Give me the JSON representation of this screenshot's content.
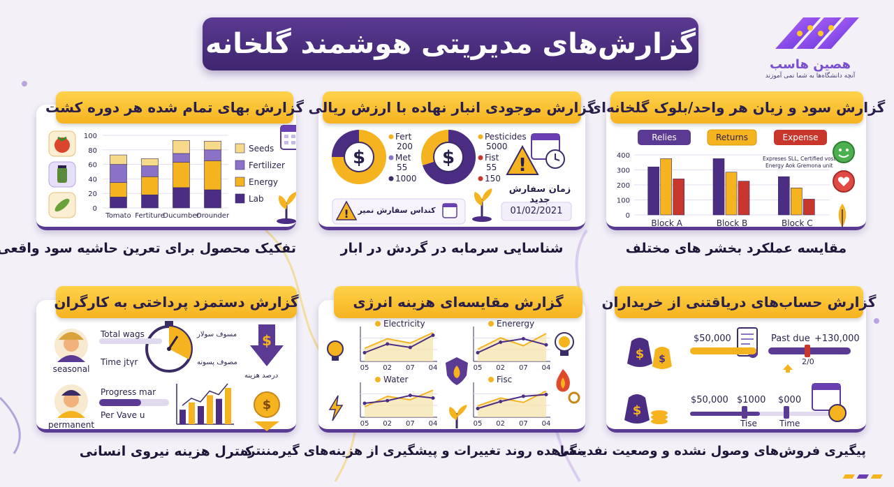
{
  "header": {
    "title": "گزارش‌های مدیریتی هوشمند گلخانه"
  },
  "logo": {
    "name": "هصین هاسب",
    "tagline": "آنچه دانشگاه‌ها به شما نمی آموزند"
  },
  "colors": {
    "purple": "#4b2d84",
    "gold": "#f5b320",
    "red": "#c8362c",
    "light_gold": "#f7d98a",
    "light_purple": "#8a72c7"
  },
  "cards": {
    "cost_per_cycle": {
      "title": "گزارش بهای تمام شده هر دوره کشت",
      "caption": "تفکیک محصول برای تعرین حاشیه سود واقعی",
      "icons": [
        "tomato-icon",
        "jar-icon",
        "cucumber-icon",
        "calendar-icon",
        "sprout-icon"
      ]
    },
    "inventory": {
      "title": "گزارش موجودی انبار نهاده با ارزش ریالی",
      "caption": "شناسایی سرمابه در گردش در ابار",
      "donut1": {
        "labels": [
          "Fert",
          "200",
          "Met",
          "55",
          "1000"
        ]
      },
      "donut2": {
        "labels": [
          "Pesticides",
          "5000",
          "Fist",
          "55",
          "150"
        ]
      },
      "new_order_label": "زمان سفارش جدید",
      "new_order_date": "01/02/2021",
      "alert_label": "کنداس سفارش نمیر"
    },
    "profit_loss": {
      "title": "گزارش سود و زیان هر واحد/بلوک گلخانه‌ای",
      "caption": "مقایسه عملکرد بخشر های مختلف",
      "tags": [
        "Relies",
        "Returns",
        "Expense"
      ],
      "note_line1": "Expreses SLL, Certified vost",
      "note_line2": "Energy Aok Gremona unit"
    },
    "wages": {
      "title": "گزارش دستمزد پرداختی به کارگران",
      "caption": "کنترل هزینه نیروی انسانی",
      "worker1": "seasonal",
      "worker2": "permanent",
      "total_wags": "Total wags",
      "time_label": "Time jtүr",
      "progress_label": "Progress mar",
      "per_vave": "Per Vave u",
      "fa_label1": "مسوف سولار",
      "fa_label2": "مصوف پسونه",
      "cost_percent": "درصد هزینه",
      "progress_value": 0.6
    },
    "energy": {
      "title": "گزارش مقایسه‌ای هزینه انرژی",
      "caption": "مشاهده روند تغییرات و پیشگیری از هزینه‌های گیرمننتره",
      "panels": [
        {
          "name": "Electricity",
          "x": [
            "05",
            "02",
            "07",
            "04"
          ],
          "series_a": [
            1.5,
            2.6,
            2.1,
            3.3
          ],
          "series_b": [
            1.0,
            2.0,
            1.6,
            3.0
          ]
        },
        {
          "name": "Enerergy",
          "x": [
            "05",
            "02",
            "07",
            "04"
          ],
          "series_a": [
            1.4,
            2.7,
            1.8,
            3.2
          ],
          "series_b": [
            1.0,
            2.2,
            2.6,
            1.9
          ]
        },
        {
          "name": "Water",
          "x": [
            "05",
            "02",
            "07",
            "04"
          ],
          "series_a": [
            1.2,
            2.4,
            2.0,
            3.1
          ],
          "series_b": [
            1.6,
            1.9,
            2.5,
            2.2
          ]
        },
        {
          "name": "Fisc",
          "x": [
            "05",
            "02",
            "07",
            "04"
          ],
          "series_a": [
            1.3,
            2.2,
            1.7,
            3.0
          ],
          "series_b": [
            1.0,
            1.8,
            2.4,
            2.6
          ]
        }
      ]
    },
    "receivables": {
      "title": "گزارش حساب‌های دریاقتنی از خریداران",
      "caption": "پیگیری فروش‌های وصول نشده و وصعیت نفدینگی",
      "amount1": "$50,000",
      "past_due": "Past due",
      "amount2": "+130,000",
      "fraction": "2/0",
      "amount3": "$50,000",
      "amount4": "$1000",
      "amount5": "$000",
      "tise": "Tise",
      "time": "Time"
    }
  },
  "chart_data": [
    {
      "type": "bar",
      "stacked": true,
      "categories": [
        "Tomato",
        "Fertiture",
        "Ducumber",
        "Orounder"
      ],
      "series": [
        {
          "name": "Lab",
          "values": [
            15,
            18,
            28,
            25
          ]
        },
        {
          "name": "Energy",
          "values": [
            20,
            25,
            35,
            40
          ]
        },
        {
          "name": "Fertilizer",
          "values": [
            25,
            15,
            12,
            15
          ]
        },
        {
          "name": "Seeds",
          "values": [
            13,
            10,
            18,
            12
          ]
        }
      ],
      "yticks": [
        0,
        20,
        40,
        60,
        80,
        100
      ],
      "ylim": [
        0,
        100
      ],
      "legend": "right"
    },
    {
      "type": "bar",
      "categories": [
        "Block A",
        "Block B",
        "Block C"
      ],
      "series": [
        {
          "name": "Relies",
          "values": [
            320,
            375,
            255
          ]
        },
        {
          "name": "Returns",
          "values": [
            375,
            285,
            180
          ]
        },
        {
          "name": "Expense",
          "values": [
            240,
            225,
            105
          ]
        }
      ],
      "yticks": [
        0,
        100,
        200,
        300,
        400
      ],
      "ylim": [
        0,
        400
      ],
      "legend": "top"
    },
    {
      "type": "pie",
      "values": [
        75,
        25
      ]
    },
    {
      "type": "pie",
      "values": [
        70,
        30
      ]
    },
    {
      "type": "bar",
      "values": [
        2,
        3,
        2.5,
        4,
        3.5,
        5
      ]
    }
  ]
}
